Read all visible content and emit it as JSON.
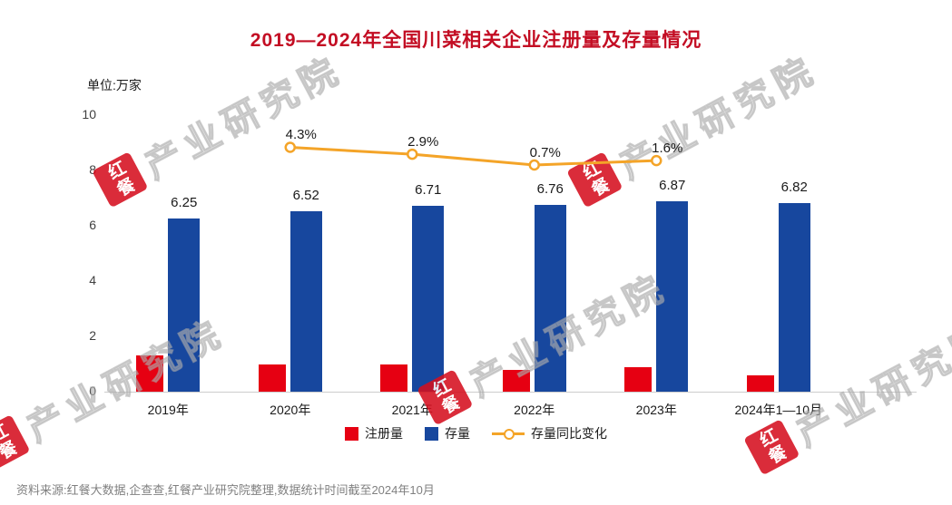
{
  "title": "2019—2024年全国川菜相关企业注册量及存量情况",
  "unit_label": "单位:万家",
  "footer": "资料来源:红餐大数据,企查查,红餐产业研究院整理,数据统计时间截至2024年10月",
  "watermark": {
    "badge": "红餐",
    "text": "产业研究院"
  },
  "colors": {
    "title": "#c30d23",
    "registration_bar": "#e60012",
    "stock_bar": "#17479e",
    "yoy_line": "#f4a428",
    "axis_text": "#404040",
    "label_text": "#1a1a1a",
    "source_text": "#808080",
    "watermark_badge": "#d5101f"
  },
  "chart_data": {
    "type": "bar",
    "subtype": "grouped-bar-with-line",
    "categories": [
      "2019年",
      "2020年",
      "2021年",
      "2022年",
      "2023年",
      "2024年1—10月"
    ],
    "series": [
      {
        "name": "注册量",
        "type": "bar",
        "color": "#e60012",
        "values": [
          1.3,
          1.0,
          1.0,
          0.78,
          0.88,
          0.58
        ]
      },
      {
        "name": "存量",
        "type": "bar",
        "color": "#17479e",
        "values": [
          6.25,
          6.52,
          6.71,
          6.76,
          6.87,
          6.82
        ],
        "value_labels": [
          "6.25",
          "6.52",
          "6.71",
          "6.76",
          "6.87",
          "6.82"
        ]
      },
      {
        "name": "存量同比变化",
        "type": "line",
        "color": "#f4a428",
        "unit": "%",
        "values": [
          null,
          4.3,
          2.9,
          0.7,
          1.6,
          null
        ],
        "point_labels": [
          "",
          "4.3%",
          "2.9%",
          "0.7%",
          "1.6%",
          ""
        ]
      }
    ],
    "ylim": [
      0,
      10
    ],
    "yticks": [
      0,
      2,
      4,
      6,
      8,
      10
    ],
    "grid": false,
    "legend_position": "bottom"
  }
}
